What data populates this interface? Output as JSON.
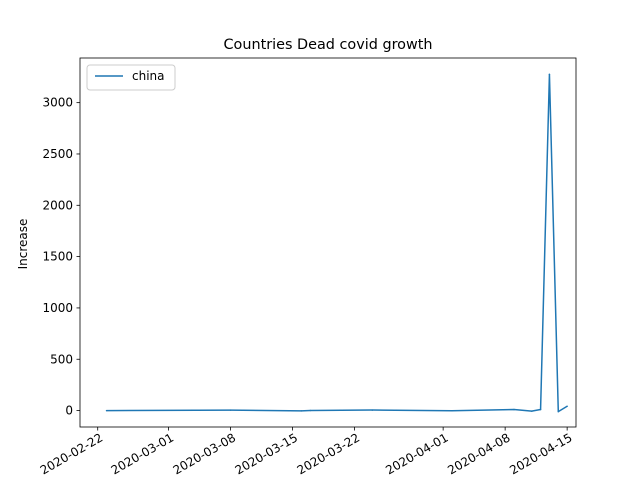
{
  "chart_data": {
    "type": "line",
    "title": "Countries Dead covid growth",
    "xlabel": "",
    "ylabel": "Increase",
    "xlim": [
      "2020-02-20",
      "2020-04-16"
    ],
    "ylim": [
      -160,
      3435
    ],
    "x_ticks": [
      "2020-02-22",
      "2020-03-01",
      "2020-03-08",
      "2020-03-15",
      "2020-03-22",
      "2020-04-01",
      "2020-04-08",
      "2020-04-15"
    ],
    "y_ticks": [
      0,
      500,
      1000,
      1500,
      2000,
      2500,
      3000
    ],
    "grid": false,
    "legend_position": "upper-left",
    "series": [
      {
        "name": "china",
        "color": "#1f77b4",
        "x": [
          "2020-02-23",
          "2020-03-08",
          "2020-03-16",
          "2020-03-17",
          "2020-03-24",
          "2020-04-02",
          "2020-04-09",
          "2020-04-11",
          "2020-04-12",
          "2020-04-13",
          "2020-04-14",
          "2020-04-15"
        ],
        "y": [
          0,
          4,
          -3,
          1,
          5,
          -2,
          10,
          -5,
          10,
          3275,
          -10,
          42
        ]
      }
    ]
  }
}
